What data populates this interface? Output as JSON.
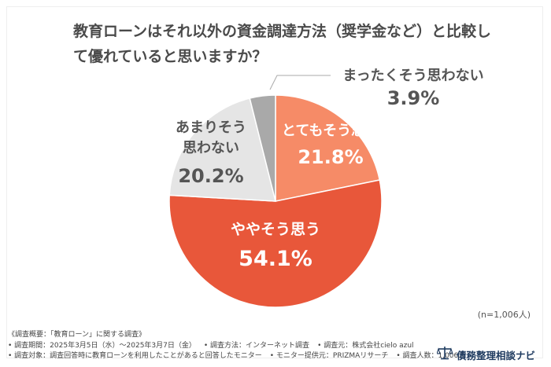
{
  "title": "教育ローンはそれ以外の資金調達方法（奨学金など）と比較して優れていると思いますか？",
  "chart_data": {
    "type": "pie",
    "categories": [
      "とてもそう思う",
      "ややそう思う",
      "あまりそう思わない",
      "まったくそう思わない"
    ],
    "values": [
      21.8,
      54.1,
      20.2,
      3.9
    ],
    "value_labels": [
      "21.8%",
      "54.1%",
      "20.2%",
      "3.9%"
    ],
    "label_lines": [
      [
        "とてもそう思う"
      ],
      [
        "ややそう思う"
      ],
      [
        "あまりそう",
        "思わない"
      ],
      [
        "まったくそう思わない"
      ]
    ],
    "colors": [
      "#f68b67",
      "#e8573a",
      "#e5e5e5",
      "#a9a9a9"
    ],
    "label_colors": [
      "#ffffff",
      "#ffffff",
      "#555555",
      "#555555"
    ],
    "start": "12 o'clock",
    "direction": "clockwise"
  },
  "note": "(n=1,006人)",
  "survey": {
    "heading": "《調査概要：「教育ローン」に関する調査》",
    "period": "• 調査期間：2025年3月5日（水）～2025年3月7日（金）",
    "method": "• 調査方法：インターネット調査",
    "source": "• 調査元：株式会社cielo azul",
    "target": "• 調査対象：調査回答時に教育ローンを利用したことがあると回答したモニター",
    "provider": "• モニター提供元：PRIZMAリサーチ",
    "count": "• 調査人数：1,006人"
  },
  "brand": {
    "name": "債務整理相談ナビ",
    "icon": "scales-icon"
  }
}
